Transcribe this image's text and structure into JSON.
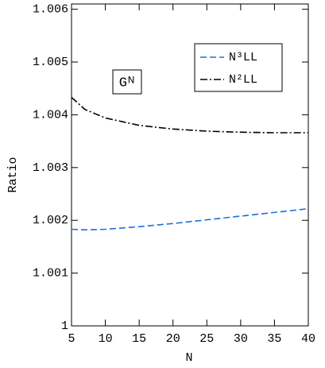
{
  "chart_data": {
    "type": "line",
    "annotation": "Gᴺ",
    "x_label": "N",
    "y_label": "Ratio",
    "x": [
      5,
      7,
      10,
      15,
      20,
      25,
      30,
      35,
      40
    ],
    "series": [
      {
        "name": "N³LL",
        "color": "#1f6fd8",
        "dash": "dashed",
        "values": [
          1.00183,
          1.00182,
          1.00183,
          1.00188,
          1.00194,
          1.00201,
          1.00208,
          1.00215,
          1.00222
        ]
      },
      {
        "name": "N²LL",
        "color": "#000000",
        "dash": "dashdot",
        "values": [
          1.00433,
          1.0041,
          1.00394,
          1.0038,
          1.00373,
          1.00369,
          1.00367,
          1.00366,
          1.00366
        ]
      }
    ],
    "xlim": [
      5,
      40
    ],
    "xticks": [
      5,
      10,
      15,
      20,
      25,
      30,
      35,
      40
    ],
    "ylim": [
      1,
      1.0061
    ],
    "yticks": [
      1,
      1.001,
      1.002,
      1.003,
      1.004,
      1.005,
      1.006
    ],
    "grid": false
  }
}
